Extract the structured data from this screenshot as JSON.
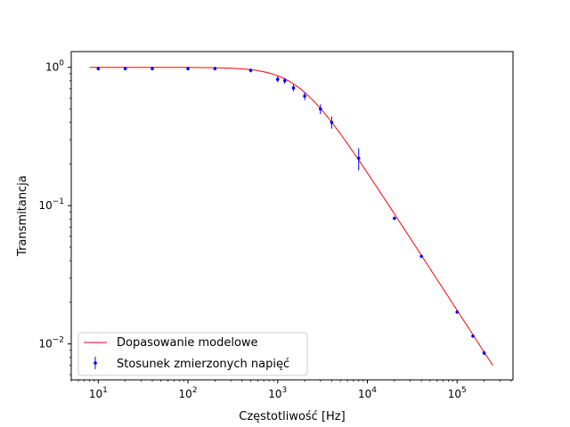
{
  "chart_data": {
    "type": "scatter",
    "xlabel": "Częstotliwość [Hz]",
    "ylabel": "Transmitancja",
    "xscale": "log",
    "yscale": "log",
    "xlim": [
      5,
      420000
    ],
    "ylim": [
      0.0055,
      1.3
    ],
    "grid": false,
    "legend_position": "lower-left",
    "x_ticks": [
      {
        "value": 10,
        "base": "10",
        "exp": "1"
      },
      {
        "value": 100,
        "base": "10",
        "exp": "2"
      },
      {
        "value": 1000,
        "base": "10",
        "exp": "3"
      },
      {
        "value": 10000,
        "base": "10",
        "exp": "4"
      },
      {
        "value": 100000,
        "base": "10",
        "exp": "5"
      }
    ],
    "y_ticks": [
      {
        "value": 0.01,
        "base": "10",
        "exp": "−2"
      },
      {
        "value": 0.1,
        "base": "10",
        "exp": "−1"
      },
      {
        "value": 1,
        "base": "10",
        "exp": "0"
      }
    ],
    "series": [
      {
        "name": "Dopasowanie modelowe",
        "kind": "line",
        "color": "#ff0000",
        "model": {
          "form": "1/sqrt(1+(f/fc)^2)",
          "fc": 1750
        },
        "x_range": [
          8,
          250000
        ]
      },
      {
        "name": "Stosunek zmierzonych napięć",
        "kind": "errorbar",
        "color": "#0000ff",
        "points": [
          {
            "x": 10,
            "y": 0.98,
            "err": 0.03
          },
          {
            "x": 20,
            "y": 0.98,
            "err": 0.03
          },
          {
            "x": 40,
            "y": 0.98,
            "err": 0.03
          },
          {
            "x": 100,
            "y": 0.98,
            "err": 0.03
          },
          {
            "x": 200,
            "y": 0.98,
            "err": 0.03
          },
          {
            "x": 500,
            "y": 0.95,
            "err": 0.03
          },
          {
            "x": 1000,
            "y": 0.82,
            "err": 0.04
          },
          {
            "x": 1200,
            "y": 0.8,
            "err": 0.04
          },
          {
            "x": 1500,
            "y": 0.71,
            "err": 0.04
          },
          {
            "x": 2000,
            "y": 0.62,
            "err": 0.04
          },
          {
            "x": 3000,
            "y": 0.5,
            "err": 0.04
          },
          {
            "x": 4000,
            "y": 0.4,
            "err": 0.04
          },
          {
            "x": 8000,
            "y": 0.22,
            "err": 0.04
          },
          {
            "x": 20000,
            "y": 0.081,
            "err": 0.002
          },
          {
            "x": 40000,
            "y": 0.043,
            "err": 0.001
          },
          {
            "x": 100000,
            "y": 0.017,
            "err": 0.0005
          },
          {
            "x": 150000,
            "y": 0.0114,
            "err": 0.0003
          },
          {
            "x": 200000,
            "y": 0.0086,
            "err": 0.0003
          }
        ]
      }
    ]
  }
}
